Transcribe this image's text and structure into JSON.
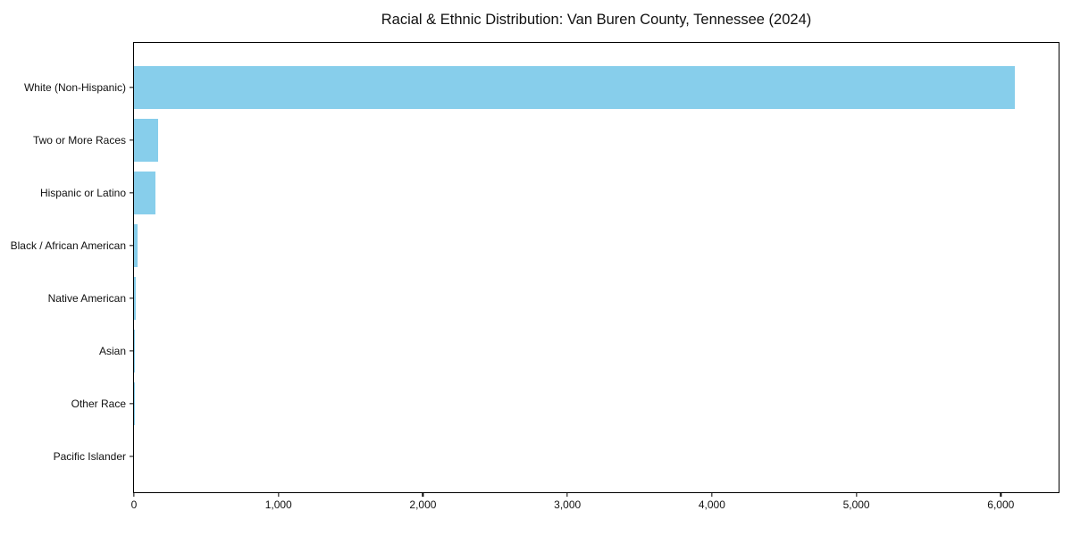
{
  "chart_data": {
    "type": "bar",
    "orientation": "horizontal",
    "title": "Racial & Ethnic Distribution: Van Buren County, Tennessee (2024)",
    "categories": [
      "White (Non-Hispanic)",
      "Two or More Races",
      "Hispanic or Latino",
      "Black / African American",
      "Native American",
      "Asian",
      "Other Race",
      "Pacific Islander"
    ],
    "values": [
      6100,
      165,
      148,
      22,
      10,
      6,
      2,
      0
    ],
    "xlabel": "",
    "ylabel": "",
    "xlim": [
      0,
      6400
    ],
    "xticks": [
      0,
      1000,
      2000,
      3000,
      4000,
      5000,
      6000
    ],
    "grid": false,
    "legend_position": "none",
    "bar_color": "#87CEEB",
    "axis_color": "#000000",
    "text_color": "#111111",
    "background_color": "#ffffff"
  }
}
